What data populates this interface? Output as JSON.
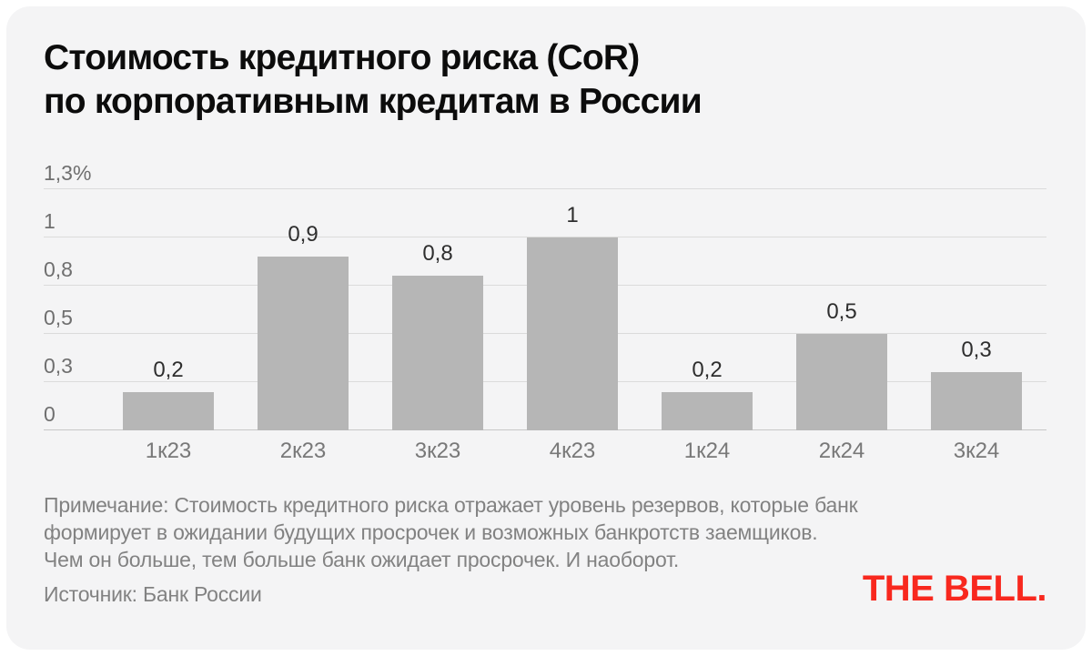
{
  "header": {
    "title_line1": "Стоимость кредитного риска (CoR)",
    "title_line2": "по корпоративным кредитам в России"
  },
  "chart_data": {
    "type": "bar",
    "title": "Стоимость кредитного риска (CoR) по корпоративным кредитам в России",
    "unit": "%",
    "categories": [
      "1к23",
      "2к23",
      "3к23",
      "4к23",
      "1к24",
      "2к24",
      "3к24"
    ],
    "values": [
      0.2,
      0.9,
      0.8,
      1,
      0.2,
      0.5,
      0.3
    ],
    "value_labels": [
      "0,2",
      "0,9",
      "0,8",
      "1",
      "0,2",
      "0,5",
      "0,3"
    ],
    "y_ticks": [
      {
        "label": "1,3%",
        "value": 1.25
      },
      {
        "label": "1",
        "value": 1
      },
      {
        "label": "0,8",
        "value": 0.75
      },
      {
        "label": "0,5",
        "value": 0.5
      },
      {
        "label": "0,3",
        "value": 0.25
      },
      {
        "label": "0",
        "value": 0
      }
    ],
    "ylim": [
      0,
      1.25
    ],
    "grid": true,
    "legend": false,
    "bar_color": "#b6b6b6"
  },
  "footer": {
    "note_lines": [
      "Примечание: Стоимость кредитного риска отражает уровень резервов, которые банк",
      "формирует в ожидании будущих просрочек и возможных банкротств заемщиков.",
      "Чем он больше, тем больше банк ожидает просрочек. И наоборот."
    ],
    "source": "Источник: Банк России",
    "logo": "THE BELL."
  },
  "colors": {
    "background": "#f4f4f5",
    "bar": "#b6b6b6",
    "logo_red": "#f8281e",
    "gridline": "#dbdbdb"
  }
}
